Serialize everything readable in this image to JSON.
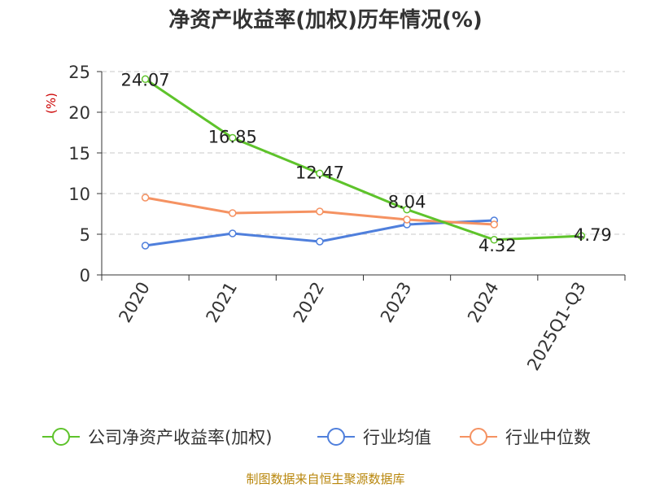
{
  "chart_data": {
    "type": "line",
    "title": "净资产收益率(加权)历年情况(%)",
    "ylabel": "(%)",
    "xlabel": "",
    "categories": [
      "2020",
      "2021",
      "2022",
      "2023",
      "2024",
      "2025Q1-Q3"
    ],
    "yticks": [
      "0",
      "5",
      "10",
      "15",
      "20",
      "25"
    ],
    "ylim": [
      0,
      25
    ],
    "grid": "horizontal dashed",
    "legend_position": "bottom",
    "series": [
      {
        "name": "公司净资产收益率(加权)",
        "color": "#5ec32b",
        "values": [
          24.07,
          16.85,
          12.47,
          8.04,
          4.32,
          4.79
        ],
        "labels": [
          "24.07",
          "16.85",
          "12.47",
          "8.04",
          "4.32",
          "4.79"
        ]
      },
      {
        "name": "行业均值",
        "color": "#4f7fdc",
        "values": [
          3.6,
          5.1,
          4.1,
          6.2,
          6.7,
          null
        ]
      },
      {
        "name": "行业中位数",
        "color": "#f59262",
        "values": [
          9.5,
          7.6,
          7.8,
          6.8,
          6.2,
          null
        ]
      }
    ],
    "source": "制图数据来自恒生聚源数据库"
  }
}
